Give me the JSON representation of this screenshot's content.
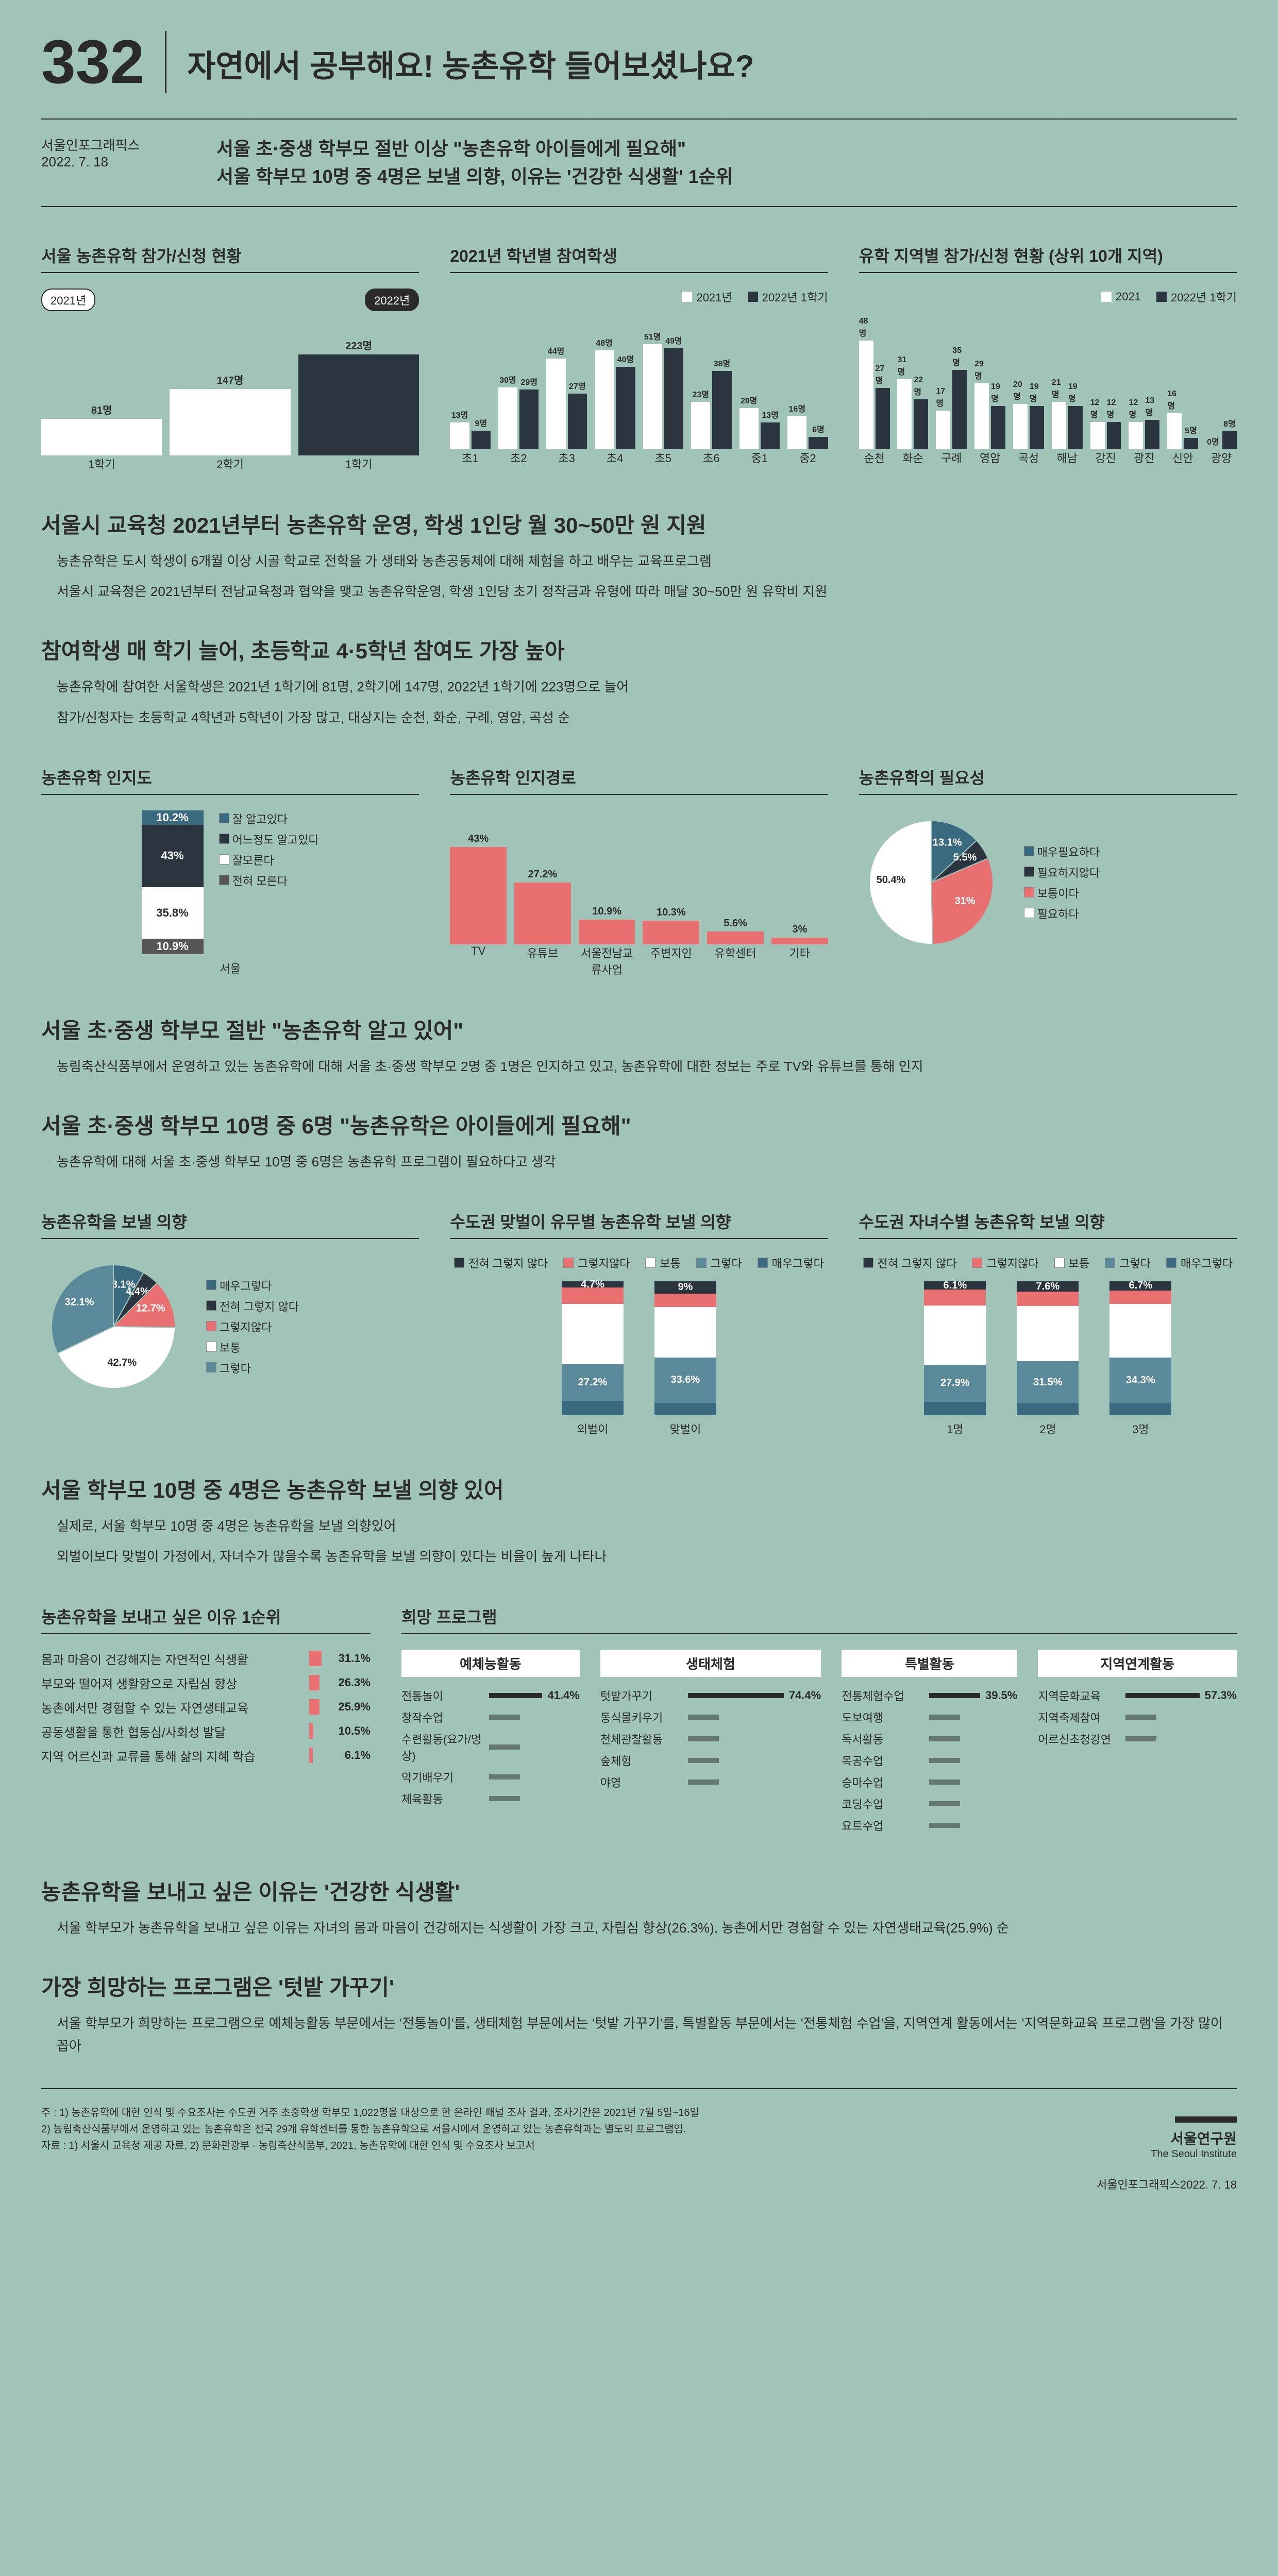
{
  "issue": "332",
  "title": "자연에서 공부해요! 농촌유학 들어보셨나요?",
  "source": "서울인포그래픽스",
  "date": "2022. 7. 18",
  "summary1": "서울 초·중생 학부모 절반 이상 \"농촌유학 아이들에게 필요해\"",
  "summary2": "서울 학부모 10명 중 4명은 보낼 의향, 이유는 '건강한 식생활' 1순위",
  "colors": {
    "white": "#ffffff",
    "dark": "#2a3540",
    "red": "#e87070",
    "blue": "#3a6a80",
    "navy": "#2a3540"
  },
  "chart1": {
    "title": "서울 농촌유학 참가/신청 현황",
    "tags": [
      "2021년",
      "2022년"
    ],
    "categories": [
      "1학기",
      "2학기",
      "1학기"
    ],
    "values": [
      81,
      147,
      223
    ],
    "colors": [
      "#ffffff",
      "#ffffff",
      "#2a3540"
    ],
    "max": 250,
    "unit": "명"
  },
  "chart2": {
    "title": "2021년 학년별 참여학생",
    "legend": [
      "2021년",
      "2022년 1학기"
    ],
    "legend_colors": [
      "#ffffff",
      "#2a3540"
    ],
    "categories": [
      "초1",
      "초2",
      "초3",
      "초4",
      "초5",
      "초6",
      "중1",
      "중2"
    ],
    "series": [
      [
        13,
        30,
        44,
        48,
        51,
        23,
        20,
        16
      ],
      [
        9,
        29,
        27,
        40,
        49,
        38,
        13,
        6
      ]
    ],
    "colors": [
      "#ffffff",
      "#2a3540"
    ],
    "max": 55,
    "unit": "명"
  },
  "chart3": {
    "title": "유학 지역별 참가/신청 현황 (상위 10개 지역)",
    "legend": [
      "2021",
      "2022년 1학기"
    ],
    "legend_colors": [
      "#ffffff",
      "#2a3540"
    ],
    "categories": [
      "순천",
      "화순",
      "구례",
      "영암",
      "곡성",
      "해남",
      "강진",
      "광진",
      "신안",
      "광양"
    ],
    "series": [
      [
        48,
        31,
        17,
        29,
        20,
        21,
        12,
        12,
        16,
        0
      ],
      [
        27,
        22,
        35,
        19,
        19,
        19,
        12,
        13,
        5,
        8
      ]
    ],
    "colors": [
      "#ffffff",
      "#2a3540"
    ],
    "max": 50,
    "unit": "명"
  },
  "textA": {
    "heading": "서울시 교육청 2021년부터 농촌유학 운영, 학생 1인당 월 30~50만 원 지원",
    "p1": "농촌유학은 도시 학생이 6개월 이상 시골 학교로 전학을 가 생태와 농촌공동체에 대해 체험을 하고 배우는 교육프로그램",
    "p2": "서울시 교육청은 2021년부터 전남교육청과 협약을 맺고 농촌유학운영, 학생 1인당 초기 정착금과 유형에 따라 매달 30~50만 원 유학비 지원"
  },
  "textB": {
    "heading": "참여학생 매 학기 늘어, 초등학교 4·5학년 참여도 가장 높아",
    "p1": "농촌유학에 참여한 서울학생은 2021년 1학기에 81명, 2학기에 147명, 2022년 1학기에 223명으로 늘어",
    "p2": "참가/신청자는 초등학교 4학년과 5학년이 가장 많고, 대상지는 순천, 화순, 구례, 영암, 곡성 순"
  },
  "awareness": {
    "title": "농촌유학 인지도",
    "labels": [
      "잘 알고있다",
      "어느정도 알고있다",
      "잘모른다",
      "전혀 모른다"
    ],
    "values": [
      10.2,
      43.0,
      35.8,
      10.9
    ],
    "colors": [
      "#3a6a80",
      "#2a3540",
      "#ffffff",
      "#555555"
    ],
    "xlabel": "서울"
  },
  "channel": {
    "title": "농촌유학 인지경로",
    "categories": [
      "TV",
      "유튜브",
      "서울전남교류사업",
      "주변지인",
      "유학센터",
      "기타"
    ],
    "values": [
      43.0,
      27.2,
      10.9,
      10.3,
      5.6,
      3.0
    ],
    "color": "#e87070",
    "max": 50
  },
  "necessity": {
    "title": "농촌유학의 필요성",
    "labels": [
      "매우필요하다",
      "필요하지않다",
      "보통이다",
      "필요하다"
    ],
    "legend_labels": [
      "매우필요하다",
      "필요하지않다",
      "보통이다",
      "필요하다"
    ],
    "values": [
      13.1,
      5.5,
      31.0,
      50.4
    ],
    "colors": [
      "#3a6a80",
      "#2a3540",
      "#e87070",
      "#ffffff"
    ]
  },
  "textC": {
    "heading": "서울 초·중생 학부모 절반 \"농촌유학 알고 있어\"",
    "p1": "농림축산식품부에서 운영하고 있는 농촌유학에 대해 서울 초·중생 학부모 2명 중 1명은 인지하고 있고, 농촌유학에 대한 정보는 주로 TV와 유튜브를 통해 인지"
  },
  "textD": {
    "heading": "서울 초·중생 학부모 10명 중 6명 \"농촌유학은 아이들에게 필요해\"",
    "p1": "농촌유학에 대해 서울 초·중생 학부모 10명 중 6명은 농촌유학 프로그램이 필요하다고 생각"
  },
  "intent": {
    "title": "농촌유학을 보낼 의향",
    "labels": [
      "매우그렇다",
      "전혀 그렇지 않다",
      "그렇지않다",
      "보통",
      "그렇다"
    ],
    "values": [
      8.1,
      4.4,
      12.7,
      42.7,
      32.1
    ],
    "colors": [
      "#3a6a80",
      "#2a3540",
      "#e87070",
      "#ffffff",
      "#5a8a9a"
    ]
  },
  "byIncome": {
    "title": "수도권 맞벌이 유무별 농촌유학 보낼 의향",
    "legend": [
      "전혀 그렇지 않다",
      "그렇지않다",
      "보통",
      "그렇다",
      "매우그렇다"
    ],
    "legend_colors": [
      "#2a3540",
      "#e87070",
      "#ffffff",
      "#5a8a9a",
      "#3a6a80"
    ],
    "categories": [
      "외벌이",
      "맞벌이"
    ],
    "stacks": [
      [
        4.7,
        12.0,
        45.1,
        27.2,
        11.0
      ],
      [
        9.0,
        10.0,
        38.0,
        33.6,
        9.4
      ]
    ]
  },
  "byChildren": {
    "title": "수도권 자녀수별 농촌유학 보낼 의향",
    "legend": [
      "전혀 그렇지 않다",
      "그렇지않다",
      "보통",
      "그렇다",
      "매우그렇다"
    ],
    "legend_colors": [
      "#2a3540",
      "#e87070",
      "#ffffff",
      "#5a8a9a",
      "#3a6a80"
    ],
    "categories": [
      "1명",
      "2명",
      "3명"
    ],
    "stacks": [
      [
        6.1,
        12.0,
        44.0,
        27.9,
        10.0
      ],
      [
        7.6,
        11.0,
        41.0,
        31.5,
        8.9
      ],
      [
        6.7,
        10.0,
        40.0,
        34.3,
        9.0
      ]
    ]
  },
  "textE": {
    "heading": "서울 학부모 10명 중 4명은 농촌유학 보낼 의향 있어",
    "p1": "실제로, 서울 학부모 10명 중 4명은 농촌유학을 보낼 의향있어",
    "p2": "외벌이보다 맞벌이 가정에서, 자녀수가 많을수록 농촌유학을 보낼 의향이 있다는 비율이 높게 나타나"
  },
  "reasons": {
    "title": "농촌유학을 보내고 싶은 이유 1순위",
    "items": [
      {
        "label": "몸과 마음이 건강해지는 자연적인 식생활",
        "value": 31.1
      },
      {
        "label": "부모와 떨어져 생활함으로 자립심 향상",
        "value": 26.3
      },
      {
        "label": "농촌에서만 경험할 수 있는 자연생태교육",
        "value": 25.9
      },
      {
        "label": "공동생활을 통한 협동심/사회성 발달",
        "value": 10.5
      },
      {
        "label": "지역 어르신과 교류를 통해 삶의 지혜 학습",
        "value": 6.1
      }
    ],
    "color": "#e87070",
    "max": 35
  },
  "programs": {
    "title": "희망 프로그램",
    "cols": [
      {
        "title": "예체능활동",
        "items": [
          {
            "label": "전통놀이",
            "value": 41.4
          },
          {
            "label": "창작수업",
            "value": 0
          },
          {
            "label": "수련활동(요가/명상)",
            "value": 0
          },
          {
            "label": "악기배우기",
            "value": 0
          },
          {
            "label": "체육활동",
            "value": 0
          }
        ]
      },
      {
        "title": "생태체험",
        "items": [
          {
            "label": "텃밭가꾸기",
            "value": 74.4
          },
          {
            "label": "동식물키우기",
            "value": 0
          },
          {
            "label": "천체관찰활동",
            "value": 0
          },
          {
            "label": "숲체험",
            "value": 0
          },
          {
            "label": "야영",
            "value": 0
          }
        ]
      },
      {
        "title": "특별활동",
        "items": [
          {
            "label": "전통체험수업",
            "value": 39.5
          },
          {
            "label": "도보여행",
            "value": 0
          },
          {
            "label": "독서활동",
            "value": 0
          },
          {
            "label": "목공수업",
            "value": 0
          },
          {
            "label": "승마수업",
            "value": 0
          },
          {
            "label": "코딩수업",
            "value": 0
          },
          {
            "label": "요트수업",
            "value": 0
          }
        ]
      },
      {
        "title": "지역연계활동",
        "items": [
          {
            "label": "지역문화교육",
            "value": 57.3
          },
          {
            "label": "지역축제참여",
            "value": 0
          },
          {
            "label": "어르신초청강연",
            "value": 0
          }
        ]
      }
    ]
  },
  "textF": {
    "heading": "농촌유학을 보내고 싶은 이유는 '건강한 식생활'",
    "p1": "서울 학부모가 농촌유학을 보내고 싶은 이유는 자녀의 몸과 마음이 건강해지는 식생활이 가장 크고, 자립심 향상(26.3%), 농촌에서만 경험할 수 있는 자연생태교육(25.9%) 순"
  },
  "textG": {
    "heading": "가장 희망하는 프로그램은 '텃밭 가꾸기'",
    "p1": "서울 학부모가 희망하는 프로그램으로 예체능활동 부문에서는 '전통놀이'를, 생태체험 부문에서는 '텃밭 가꾸기'를, 특별활동 부문에서는 '전통체험 수업'을, 지역연계 활동에서는 '지역문화교육 프로그램'을 가장 많이 꼽아"
  },
  "footnotes": [
    "주 : 1) 농촌유학에 대한 인식 및 수요조사는 수도권 거주 초중학생 학부모 1,022명을 대상으로 한 온라인 패널 조사 결과, 조사기간은 2021년 7월 5일~16일",
    "2) 농림축산식품부에서 운영하고 있는 농촌유학은 전국 29개 유학센터를 통한 농촌유학으로 서울시에서 운영하고 있는 농촌유학과는 별도의 프로그램임.",
    "자료 : 1) 서울시 교육청 제공 자료, 2) 문화관광부 · 농림축산식품부, 2021, 농촌유학에 대한 인식 및 수요조사 보고서"
  ],
  "institute": "서울연구원",
  "institute_en": "The Seoul Institute",
  "footer_tag": "서울인포그래픽스2022. 7. 18"
}
